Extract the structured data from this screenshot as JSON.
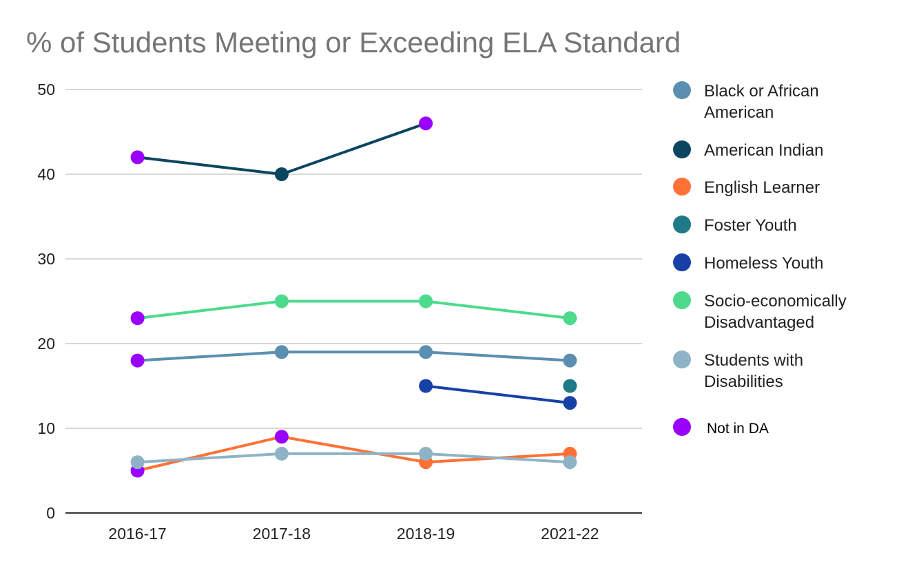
{
  "chart_data": {
    "type": "line",
    "title": "% of Students Meeting or Exceeding ELA Standard",
    "categories": [
      "2016-17",
      "2017-18",
      "2018-19",
      "2021-22"
    ],
    "ylim": [
      0,
      50
    ],
    "yticks": [
      0,
      10,
      20,
      30,
      40,
      50
    ],
    "grid": true,
    "legend_position": "right",
    "series": [
      {
        "name": "Black or African American",
        "color": "#5b8fb0",
        "values": [
          18,
          19,
          19,
          18
        ]
      },
      {
        "name": "American Indian",
        "color": "#0b4660",
        "values": [
          42,
          40,
          46,
          null
        ]
      },
      {
        "name": "English Learner",
        "color": "#ff7135",
        "values": [
          5,
          9,
          6,
          7
        ]
      },
      {
        "name": "Foster Youth",
        "color": "#1e7a86",
        "values": [
          null,
          null,
          null,
          15
        ]
      },
      {
        "name": "Homeless Youth",
        "color": "#1741a6",
        "values": [
          null,
          null,
          15,
          13
        ]
      },
      {
        "name": "Socio-economically Disadvantaged",
        "color": "#4dda8c",
        "values": [
          23,
          25,
          25,
          23
        ]
      },
      {
        "name": "Students with Disabilities",
        "color": "#8fb3c6",
        "values": [
          6,
          7,
          7,
          6
        ]
      }
    ],
    "highlight": {
      "name": "Not in DA",
      "color": "#9900ff"
    },
    "highlighted_points": [
      {
        "series": "Black or African American",
        "category": "2016-17"
      },
      {
        "series": "American Indian",
        "category": "2016-17"
      },
      {
        "series": "American Indian",
        "category": "2018-19"
      },
      {
        "series": "English Learner",
        "category": "2016-17"
      },
      {
        "series": "English Learner",
        "category": "2017-18"
      },
      {
        "series": "Socio-economically Disadvantaged",
        "category": "2016-17"
      }
    ],
    "legend": [
      {
        "lines": [
          "Black or African",
          "American"
        ],
        "color": "#5b8fb0"
      },
      {
        "lines": [
          "American Indian"
        ],
        "color": "#0b4660"
      },
      {
        "lines": [
          "English Learner"
        ],
        "color": "#ff7135"
      },
      {
        "lines": [
          "Foster Youth"
        ],
        "color": "#1e7a86"
      },
      {
        "lines": [
          "Homeless Youth"
        ],
        "color": "#1741a6"
      },
      {
        "lines": [
          "Socio-economically",
          "Disadvantaged"
        ],
        "color": "#4dda8c"
      },
      {
        "lines": [
          "Students with",
          "Disabilities"
        ],
        "color": "#8fb3c6"
      },
      {
        "lines": [
          "Not in DA"
        ],
        "color": "#9900ff",
        "small": true
      }
    ]
  }
}
